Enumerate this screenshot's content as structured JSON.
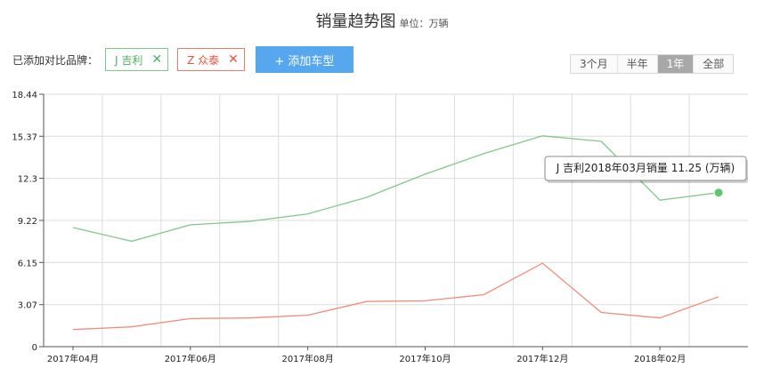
{
  "header": {
    "title": "销量趋势图",
    "unit": "单位：万辆"
  },
  "brands": {
    "label": "已添加对比品牌：",
    "items": [
      {
        "label": "J 吉利",
        "remove_icon": "close-icon",
        "color": "#4caf5f"
      },
      {
        "label": "Z 众泰",
        "remove_icon": "close-icon",
        "color": "#e5533d"
      }
    ],
    "add_label": "+ 添加车型"
  },
  "range": {
    "options": [
      "3个月",
      "半年",
      "1年",
      "全部"
    ],
    "active": "1年"
  },
  "tooltip": {
    "text": "J 吉利2018年03月销量 11.25 (万辆)"
  },
  "chart_data": {
    "type": "line",
    "x": [
      "2017年04月",
      "2017年05月",
      "2017年06月",
      "2017年07月",
      "2017年08月",
      "2017年09月",
      "2017年10月",
      "2017年11月",
      "2017年12月",
      "2018年01月",
      "2018年02月",
      "2018年03月"
    ],
    "x_tick_labels": [
      "2017年04月",
      "2017年06月",
      "2017年08月",
      "2017年10月",
      "2017年12月",
      "2018年02月"
    ],
    "y_tick_labels": [
      "0",
      "3.07",
      "6.15",
      "9.22",
      "12.3",
      "15.37",
      "18.44"
    ],
    "ylim": [
      0,
      18.44
    ],
    "grid": true,
    "series": [
      {
        "name": "J 吉利",
        "color": "#7cc98a",
        "values": [
          8.7,
          7.7,
          8.9,
          9.15,
          9.7,
          10.9,
          12.6,
          14.1,
          15.4,
          15.0,
          10.7,
          11.25
        ]
      },
      {
        "name": "Z 众泰",
        "color": "#f28b78",
        "values": [
          1.25,
          1.45,
          2.05,
          2.1,
          2.3,
          3.3,
          3.35,
          3.8,
          6.1,
          2.5,
          2.1,
          3.65
        ]
      }
    ]
  }
}
